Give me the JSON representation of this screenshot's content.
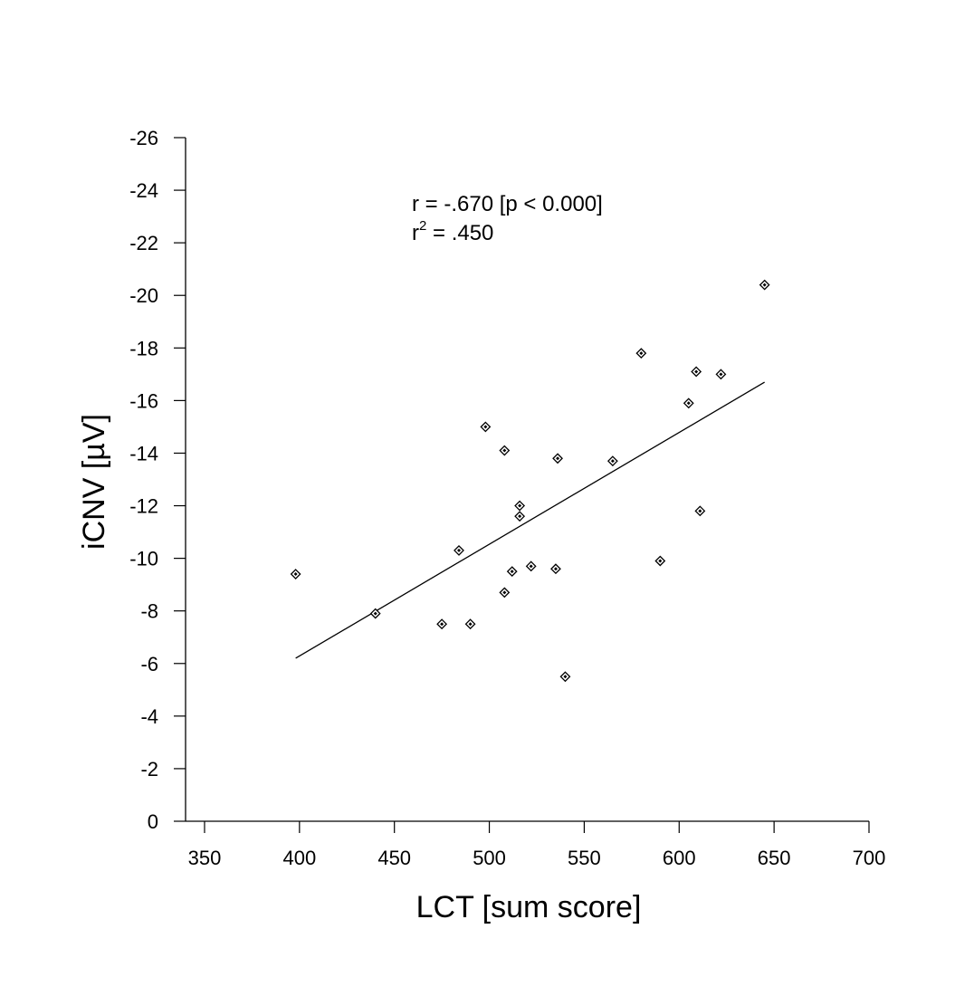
{
  "chart_data": {
    "type": "scatter",
    "xlabel": "LCT [sum score]",
    "ylabel": "iCNV [µV]",
    "xlim": [
      340,
      700
    ],
    "ylim": [
      0,
      -26
    ],
    "y_axis_reversed": true,
    "grid": false,
    "x_ticks": [
      350,
      400,
      450,
      500,
      550,
      600,
      650,
      700
    ],
    "x_tick_labels": [
      "350",
      "400",
      "450",
      "500",
      "550",
      "600",
      "650",
      "700"
    ],
    "y_ticks": [
      0,
      -2,
      -4,
      -6,
      -8,
      -10,
      -12,
      -14,
      -16,
      -18,
      -20,
      -22,
      -24,
      -26
    ],
    "y_tick_labels": [
      "0",
      "-2",
      "-4",
      "-6",
      "-8",
      "-10",
      "-12",
      "-14",
      "-16",
      "-18",
      "-20",
      "-22",
      "-24",
      "-26"
    ],
    "annotation": {
      "r_text": "r  =  -.670 [p < 0.000]",
      "r2_prefix": "r",
      "r2_sup": "2",
      "r2_value": " =   .450"
    },
    "points": [
      {
        "x": 398,
        "y": -9.4
      },
      {
        "x": 440,
        "y": -7.9
      },
      {
        "x": 475,
        "y": -7.5
      },
      {
        "x": 484,
        "y": -10.3
      },
      {
        "x": 490,
        "y": -7.5
      },
      {
        "x": 498,
        "y": -15.0
      },
      {
        "x": 508,
        "y": -14.1
      },
      {
        "x": 508,
        "y": -8.7
      },
      {
        "x": 512,
        "y": -9.5
      },
      {
        "x": 516,
        "y": -12.0
      },
      {
        "x": 516,
        "y": -11.6
      },
      {
        "x": 522,
        "y": -9.7
      },
      {
        "x": 535,
        "y": -9.6
      },
      {
        "x": 536,
        "y": -13.8
      },
      {
        "x": 540,
        "y": -5.5
      },
      {
        "x": 565,
        "y": -13.7
      },
      {
        "x": 580,
        "y": -17.8
      },
      {
        "x": 590,
        "y": -9.9
      },
      {
        "x": 605,
        "y": -15.9
      },
      {
        "x": 609,
        "y": -17.1
      },
      {
        "x": 611,
        "y": -11.8
      },
      {
        "x": 622,
        "y": -17.0
      },
      {
        "x": 645,
        "y": -20.4
      }
    ],
    "regression_line": {
      "x": [
        398,
        645
      ],
      "y": [
        -6.2,
        -16.7
      ]
    }
  }
}
